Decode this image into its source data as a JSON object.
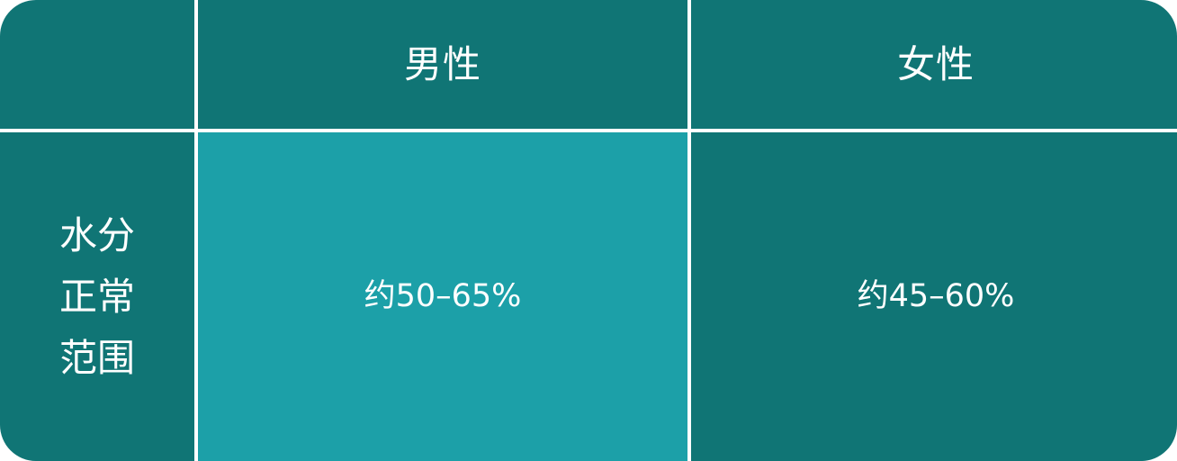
{
  "table": {
    "corner": "",
    "column_headers": [
      "男性",
      "女性"
    ],
    "row_label": "水分\n正常\n范围",
    "values": [
      "约50–65%",
      "约45–60%"
    ]
  },
  "colors": {
    "base": "#107575",
    "highlight": "#1ca0a8",
    "divider": "#ffffff",
    "text": "#ffffff"
  }
}
